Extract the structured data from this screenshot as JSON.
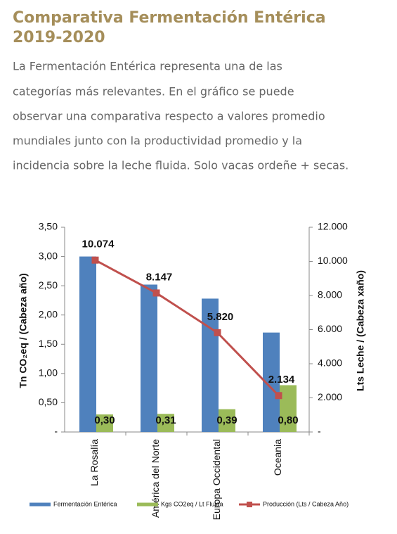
{
  "header": {
    "title": [
      "Comparativa Fermentación Entérica",
      "2019-2020"
    ],
    "text": [
      "La Fermentación Entérica representa una de las",
      "categorías más relevantes. En el gráfico se puede",
      "observar una comparativa respecto a valores promedio",
      "mundiales junto con la productividad promedio y la",
      "incidencia sobre la leche fluida. Solo vacas ordeñe + secas."
    ]
  },
  "chart_data": {
    "type": "bar",
    "categories": [
      "La Rosalía",
      "América del Norte",
      "Europa Occidental",
      "Oceania"
    ],
    "series": [
      {
        "name": "Fermentación Entérica",
        "color": "#4f81bd",
        "values": [
          3.0,
          2.52,
          2.28,
          1.7
        ]
      },
      {
        "name": "Kgs CO2eq  / Lt Fluida",
        "color": "#9bbb59",
        "values": [
          0.3,
          0.31,
          0.39,
          0.8
        ],
        "value_labels": [
          "0,30",
          "0,31",
          "0,39",
          "0,80"
        ]
      },
      {
        "name": "Producción (Lts / Cabeza Año)",
        "color": "#c0504d",
        "type": "line",
        "axis": "y2",
        "values": [
          10074,
          8147,
          5820,
          2134
        ],
        "value_labels": [
          "10.074",
          "8.147",
          "5.820",
          "2.134"
        ]
      }
    ],
    "ylabel": "Tn CO₂eq / (Cabeza año)",
    "y2label": "Lts Leche / (Cabeza xaño)",
    "ylim": [
      0,
      3.5
    ],
    "yticks": [
      {
        "value": 0,
        "label": "-"
      },
      {
        "value": 0.5,
        "label": "0,50"
      },
      {
        "value": 1,
        "label": "1,00"
      },
      {
        "value": 1.5,
        "label": "1,50"
      },
      {
        "value": 2,
        "label": "2,00"
      },
      {
        "value": 2.5,
        "label": "2,50"
      },
      {
        "value": 3,
        "label": "3,00"
      },
      {
        "value": 3.5,
        "label": "3,50"
      }
    ],
    "y2lim": [
      0,
      12000
    ],
    "y2ticks": [
      {
        "value": 0,
        "label": "-"
      },
      {
        "value": 2000,
        "label": "2.000"
      },
      {
        "value": 4000,
        "label": "4.000"
      },
      {
        "value": 6000,
        "label": "6.000"
      },
      {
        "value": 8000,
        "label": "8.000"
      },
      {
        "value": 10000,
        "label": "10.000"
      },
      {
        "value": 12000,
        "label": "12.000"
      }
    ],
    "legend": "bottom",
    "grid": false
  }
}
